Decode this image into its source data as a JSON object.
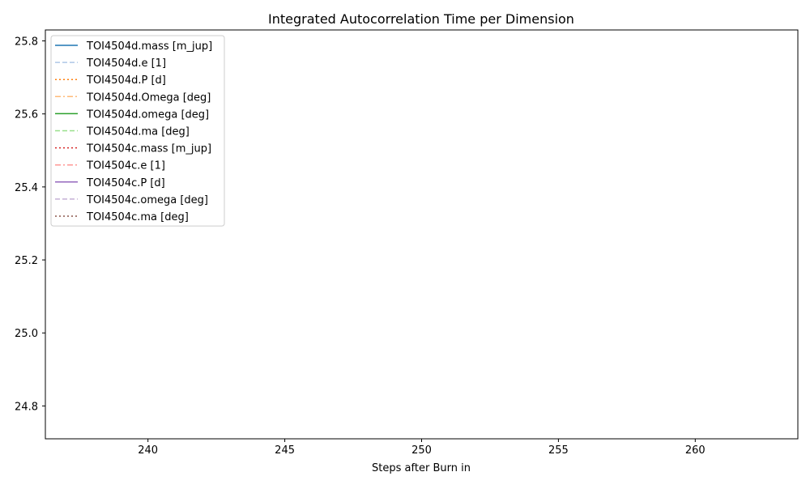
{
  "chart_data": {
    "type": "line",
    "title": "Integrated Autocorrelation Time per Dimension",
    "xlabel": "Steps after Burn in",
    "ylabel": "",
    "xlim": [
      236.25,
      263.75
    ],
    "ylim": [
      24.71,
      25.83
    ],
    "xticks": [
      {
        "value": 240,
        "label": "240"
      },
      {
        "value": 245,
        "label": "245"
      },
      {
        "value": 250,
        "label": "250"
      },
      {
        "value": 255,
        "label": "255"
      },
      {
        "value": 260,
        "label": "260"
      }
    ],
    "yticks": [
      {
        "value": 24.8,
        "label": "24.8"
      },
      {
        "value": 25.0,
        "label": "25.0"
      },
      {
        "value": 25.2,
        "label": "25.2"
      },
      {
        "value": 25.4,
        "label": "25.4"
      },
      {
        "value": 25.6,
        "label": "25.6"
      },
      {
        "value": 25.8,
        "label": "25.8"
      }
    ],
    "grid": false,
    "legend_position": "top-left",
    "series": [
      {
        "name": "TOI4504d.mass [m_jup]",
        "color": "#1f77b4",
        "linestyle": "solid",
        "x": [],
        "y": []
      },
      {
        "name": "TOI4504d.e [1]",
        "color": "#aec7e8",
        "linestyle": "dashed",
        "x": [],
        "y": []
      },
      {
        "name": "TOI4504d.P [d]",
        "color": "#ff7f0e",
        "linestyle": "dotted",
        "x": [],
        "y": []
      },
      {
        "name": "TOI4504d.Omega [deg]",
        "color": "#ffbb78",
        "linestyle": "dashdot",
        "x": [],
        "y": []
      },
      {
        "name": "TOI4504d.omega [deg]",
        "color": "#2ca02c",
        "linestyle": "solid",
        "x": [],
        "y": []
      },
      {
        "name": "TOI4504d.ma [deg]",
        "color": "#98df8a",
        "linestyle": "dashed",
        "x": [],
        "y": []
      },
      {
        "name": "TOI4504c.mass [m_jup]",
        "color": "#d62728",
        "linestyle": "dotted",
        "x": [],
        "y": []
      },
      {
        "name": "TOI4504c.e [1]",
        "color": "#ff9896",
        "linestyle": "dashdot",
        "x": [],
        "y": []
      },
      {
        "name": "TOI4504c.P [d]",
        "color": "#9467bd",
        "linestyle": "solid",
        "x": [],
        "y": []
      },
      {
        "name": "TOI4504c.omega [deg]",
        "color": "#c5b0d5",
        "linestyle": "dashed",
        "x": [],
        "y": []
      },
      {
        "name": "TOI4504c.ma [deg]",
        "color": "#8c564b",
        "linestyle": "dotted",
        "x": [],
        "y": []
      }
    ]
  }
}
